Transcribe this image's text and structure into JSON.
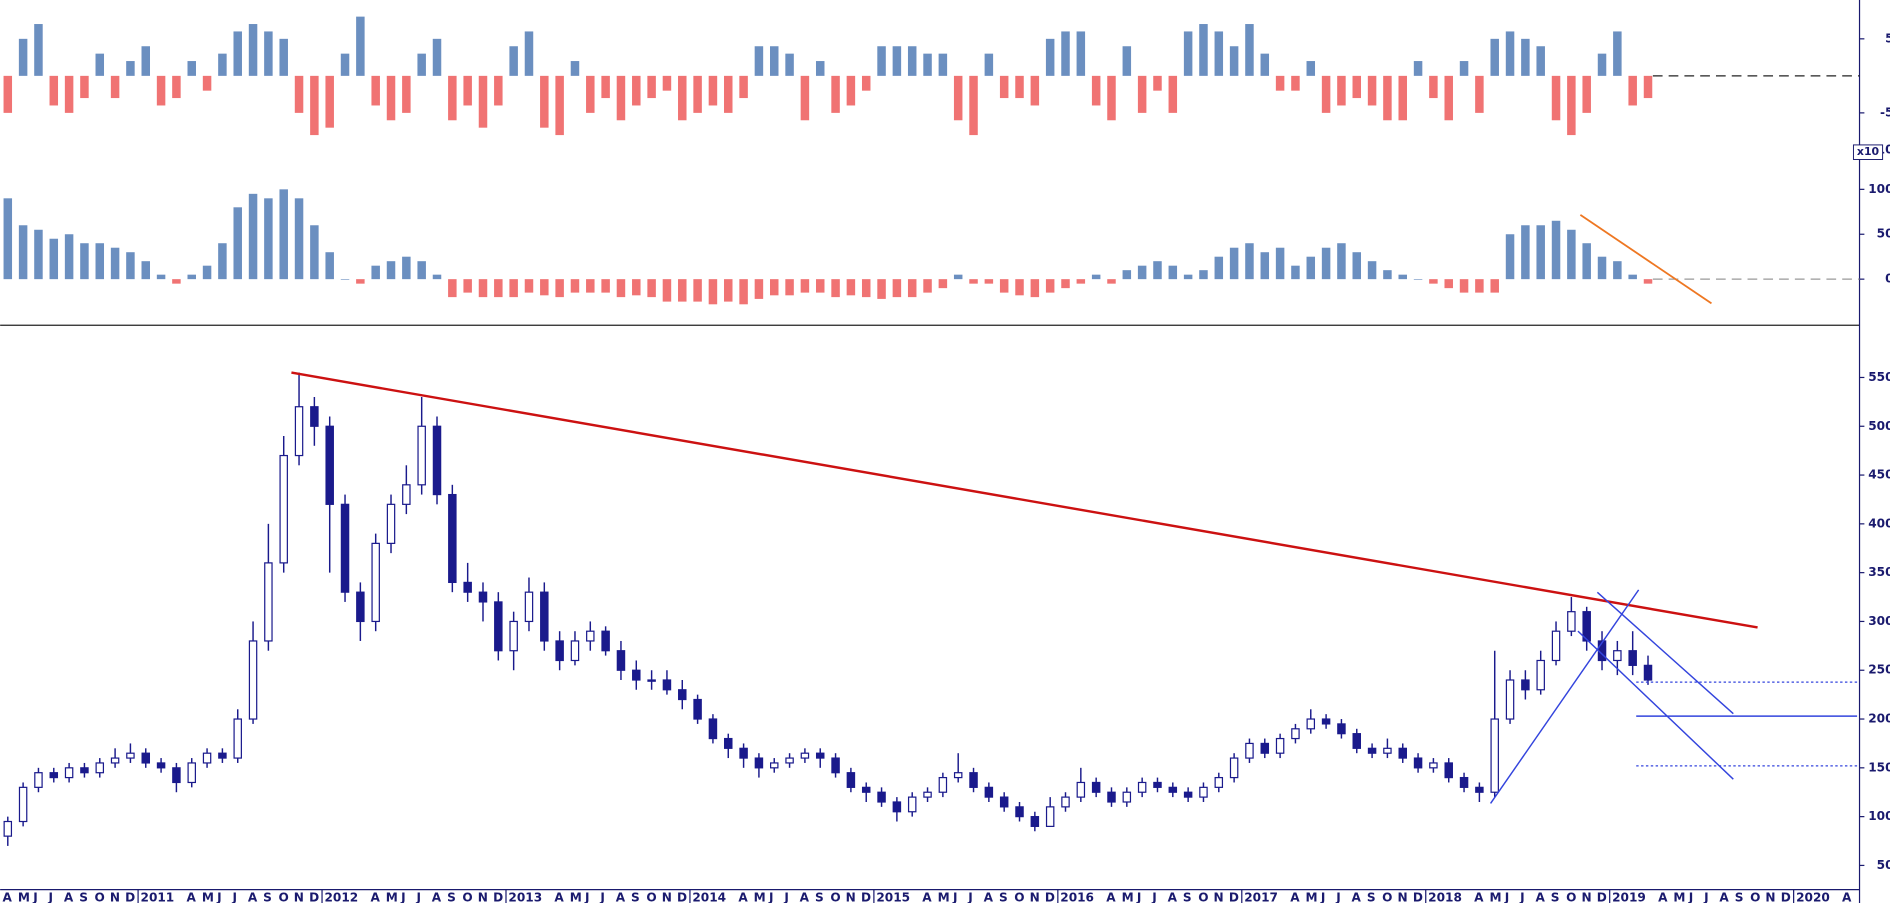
{
  "chart_data": [
    {
      "type": "bar",
      "positive_color": "#6b8fc0",
      "negative_color": "#f07373",
      "zero_line": true,
      "ylim": [
        -10,
        10
      ],
      "yticks": [
        5,
        -5,
        {
          "value": -10,
          "label": "10"
        }
      ],
      "values": [
        -5,
        5,
        7,
        -4,
        -5,
        -3,
        3,
        -3,
        2,
        4,
        -4,
        -3,
        2,
        -2,
        3,
        6,
        7,
        6,
        5,
        -5,
        -8,
        -7,
        3,
        8,
        -4,
        -6,
        -5,
        3,
        5,
        -6,
        -4,
        -7,
        -4,
        4,
        6,
        -7,
        -8,
        2,
        -5,
        -3,
        -6,
        -4,
        -3,
        -2,
        -6,
        -5,
        -4,
        -5,
        -3,
        4,
        4,
        3,
        -6,
        2,
        -5,
        -4,
        -2,
        4,
        4,
        4,
        3,
        3,
        -6,
        -8,
        3,
        -3,
        -3,
        -4,
        5,
        6,
        6,
        -4,
        -6,
        4,
        -5,
        -2,
        -5,
        6,
        7,
        6,
        4,
        7,
        3,
        -2,
        -2,
        2,
        -5,
        -4,
        -3,
        -4,
        -6,
        -6,
        2,
        -3,
        -6,
        2,
        -5,
        5,
        6,
        5,
        4,
        -6,
        -8,
        -5,
        3,
        6,
        -4,
        -3,
        null,
        null,
        null,
        null,
        null,
        null,
        null,
        null,
        null,
        null,
        null,
        null,
        null
      ]
    },
    {
      "type": "bar",
      "positive_color": "#6b8fc0",
      "negative_color": "#f07373",
      "zero_line": true,
      "unit_label": "x10",
      "ylim": [
        -50,
        140
      ],
      "yticks": [
        100,
        50,
        0
      ],
      "values": [
        90,
        60,
        55,
        45,
        50,
        40,
        40,
        35,
        30,
        20,
        5,
        -5,
        5,
        15,
        40,
        80,
        95,
        90,
        100,
        90,
        60,
        30,
        0,
        -5,
        15,
        20,
        25,
        20,
        5,
        -20,
        -15,
        -20,
        -20,
        -20,
        -15,
        -18,
        -20,
        -15,
        -15,
        -15,
        -20,
        -18,
        -20,
        -25,
        -25,
        -25,
        -28,
        -25,
        -28,
        -22,
        -18,
        -18,
        -15,
        -15,
        -20,
        -18,
        -20,
        -22,
        -20,
        -20,
        -15,
        -10,
        5,
        -5,
        -5,
        -15,
        -18,
        -20,
        -15,
        -10,
        -5,
        5,
        -5,
        10,
        15,
        20,
        15,
        5,
        10,
        25,
        35,
        40,
        30,
        35,
        15,
        25,
        35,
        40,
        30,
        20,
        10,
        5,
        0,
        -5,
        -10,
        -15,
        -15,
        -15,
        50,
        60,
        60,
        65,
        55,
        40,
        25,
        20,
        5,
        -5,
        null,
        null,
        null,
        null,
        null,
        null,
        null,
        null,
        null,
        null,
        null,
        null,
        null
      ]
    },
    {
      "type": "candlestick",
      "color": "#1a1a8c",
      "ylim": [
        10,
        600
      ],
      "yticks": [
        550,
        500,
        450,
        400,
        350,
        300,
        250,
        200,
        150,
        100,
        50
      ],
      "categories": [
        "A",
        "M",
        "J",
        "J",
        "A",
        "S",
        "O",
        "N",
        "D",
        "2011",
        null,
        null,
        "A",
        "M",
        "J",
        "J",
        "A",
        "S",
        "O",
        "N",
        "D",
        "2012",
        null,
        null,
        "A",
        "M",
        "J",
        "J",
        "A",
        "S",
        "O",
        "N",
        "D",
        "2013",
        null,
        null,
        "A",
        "M",
        "J",
        "J",
        "A",
        "S",
        "O",
        "N",
        "D",
        "2014",
        null,
        null,
        "A",
        "M",
        "J",
        "J",
        "A",
        "S",
        "O",
        "N",
        "D",
        "2015",
        null,
        null,
        "A",
        "M",
        "J",
        "J",
        "A",
        "S",
        "O",
        "N",
        "D",
        "2016",
        null,
        null,
        "A",
        "M",
        "J",
        "J",
        "A",
        "S",
        "O",
        "N",
        "D",
        "2017",
        null,
        null,
        "A",
        "M",
        "J",
        "J",
        "A",
        "S",
        "O",
        "N",
        "D",
        "2018",
        null,
        null,
        "A",
        "M",
        "J",
        "J",
        "A",
        "S",
        "O",
        "N",
        "D",
        "2019",
        null,
        null,
        "A",
        "M",
        "J",
        "J",
        "A",
        "S",
        "O",
        "N",
        "D",
        "2020",
        null,
        null,
        "A"
      ],
      "open": [
        80,
        95,
        130,
        145,
        140,
        150,
        145,
        155,
        160,
        165,
        155,
        150,
        135,
        155,
        165,
        160,
        200,
        280,
        360,
        470,
        520,
        500,
        420,
        330,
        300,
        380,
        420,
        440,
        500,
        430,
        340,
        330,
        320,
        270,
        300,
        330,
        280,
        260,
        280,
        290,
        270,
        250,
        240,
        240,
        230,
        220,
        200,
        180,
        170,
        160,
        150,
        155,
        160,
        165,
        160,
        145,
        130,
        125,
        115,
        105,
        120,
        125,
        140,
        145,
        130,
        120,
        110,
        100,
        90,
        110,
        120,
        135,
        125,
        115,
        125,
        135,
        130,
        125,
        120,
        130,
        140,
        160,
        175,
        165,
        180,
        190,
        200,
        195,
        185,
        170,
        165,
        170,
        160,
        150,
        155,
        140,
        130,
        125,
        200,
        240,
        230,
        260,
        290,
        310,
        280,
        260,
        270,
        255,
        null,
        null,
        null,
        null,
        null,
        null,
        null,
        null,
        null,
        null,
        null,
        null,
        null
      ],
      "high": [
        100,
        135,
        150,
        150,
        155,
        155,
        160,
        170,
        175,
        170,
        160,
        155,
        160,
        170,
        170,
        210,
        300,
        400,
        490,
        555,
        530,
        510,
        430,
        340,
        390,
        430,
        460,
        530,
        510,
        440,
        360,
        340,
        330,
        310,
        345,
        340,
        290,
        290,
        300,
        295,
        280,
        260,
        250,
        250,
        240,
        225,
        205,
        185,
        175,
        165,
        160,
        165,
        170,
        170,
        165,
        150,
        135,
        130,
        120,
        125,
        130,
        145,
        165,
        150,
        135,
        125,
        115,
        105,
        120,
        125,
        150,
        140,
        130,
        130,
        140,
        140,
        135,
        130,
        135,
        145,
        165,
        180,
        180,
        185,
        195,
        210,
        205,
        200,
        190,
        175,
        180,
        175,
        165,
        160,
        160,
        145,
        135,
        270,
        250,
        250,
        270,
        300,
        325,
        315,
        290,
        280,
        290,
        265,
        null,
        null,
        null,
        null,
        null,
        null,
        null,
        null,
        null,
        null,
        null,
        null,
        null
      ],
      "low": [
        70,
        90,
        125,
        135,
        135,
        140,
        140,
        150,
        155,
        150,
        145,
        125,
        130,
        150,
        155,
        155,
        195,
        270,
        350,
        460,
        480,
        350,
        320,
        280,
        290,
        370,
        410,
        430,
        420,
        330,
        320,
        300,
        260,
        250,
        290,
        270,
        250,
        255,
        270,
        265,
        240,
        230,
        230,
        225,
        210,
        195,
        175,
        160,
        150,
        140,
        145,
        150,
        155,
        150,
        140,
        125,
        115,
        110,
        95,
        100,
        115,
        120,
        135,
        125,
        115,
        105,
        95,
        85,
        90,
        105,
        115,
        120,
        110,
        110,
        120,
        125,
        120,
        115,
        115,
        125,
        135,
        155,
        160,
        160,
        175,
        185,
        190,
        180,
        165,
        160,
        160,
        155,
        145,
        145,
        135,
        125,
        115,
        120,
        195,
        220,
        225,
        255,
        285,
        270,
        250,
        245,
        245,
        235,
        null,
        null,
        null,
        null,
        null,
        null,
        null,
        null,
        null,
        null,
        null,
        null,
        null
      ],
      "close": [
        95,
        130,
        145,
        140,
        150,
        145,
        155,
        160,
        165,
        155,
        150,
        135,
        155,
        165,
        160,
        200,
        280,
        360,
        470,
        520,
        500,
        420,
        330,
        300,
        380,
        420,
        440,
        500,
        430,
        340,
        330,
        320,
        270,
        300,
        330,
        280,
        260,
        280,
        290,
        270,
        250,
        240,
        240,
        230,
        220,
        200,
        180,
        170,
        160,
        150,
        155,
        160,
        165,
        160,
        145,
        130,
        125,
        115,
        105,
        120,
        125,
        140,
        145,
        130,
        120,
        110,
        100,
        90,
        110,
        120,
        135,
        125,
        115,
        125,
        135,
        130,
        125,
        120,
        130,
        140,
        160,
        175,
        165,
        180,
        190,
        200,
        195,
        185,
        170,
        165,
        170,
        160,
        150,
        155,
        140,
        130,
        125,
        200,
        240,
        230,
        260,
        290,
        310,
        280,
        260,
        270,
        255,
        240,
        null,
        null,
        null,
        null,
        null,
        null,
        null,
        null,
        null,
        null,
        null,
        null,
        null
      ]
    }
  ]
}
